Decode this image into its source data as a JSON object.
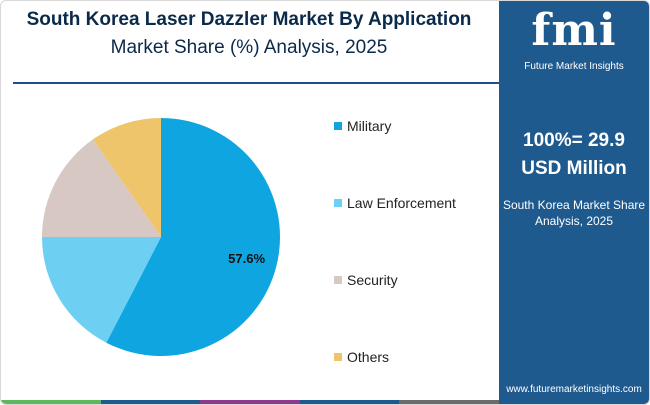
{
  "header": {
    "title": "South Korea Laser Dazzler Market By Application",
    "subtitle": "Market Share (%) Analysis, 2025"
  },
  "chart_data": {
    "type": "pie",
    "categories": [
      "Military",
      "Law Enforcement",
      "Security",
      "Others"
    ],
    "values": [
      57.6,
      17.4,
      15.3,
      9.7
    ],
    "colors": [
      "#0ea5e0",
      "#6dcff2",
      "#d7c8c3",
      "#eec56b"
    ],
    "data_labels": [
      "57.6%",
      "",
      "",
      ""
    ],
    "start": "top, clockwise",
    "legend": "right"
  },
  "sidebar": {
    "logo_text": "fmi",
    "logo_tagline": "Future Market Insights",
    "total_line1": "100%= 29.9",
    "total_line2": "USD Million",
    "desc_line1": "South Korea Market Share",
    "desc_line2": "Analysis, 2025",
    "url": "www.futuremarketinsights.com"
  },
  "bottom_bar_colors": [
    "#5cb85c",
    "#1f5a8e",
    "#8b3a8f",
    "#1f5a8e",
    "#6b6b6b"
  ]
}
